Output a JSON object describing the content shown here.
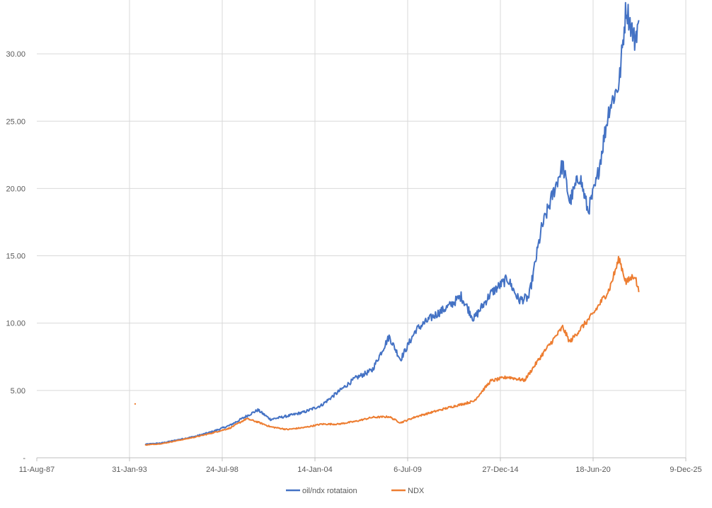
{
  "chart_data": {
    "type": "line",
    "title": "",
    "xlabel": "",
    "ylabel": "",
    "x_axis_type": "date",
    "xlim": [
      "1987-08-11",
      "2025-12-09"
    ],
    "ylim": [
      0,
      34
    ],
    "x_tick_labels": [
      "11-Aug-87",
      "31-Jan-93",
      "24-Jul-98",
      "14-Jan-04",
      "6-Jul-09",
      "27-Dec-14",
      "18-Jun-20",
      "9-Dec-25"
    ],
    "x_ticks": [
      "1987-08-11",
      "1993-01-31",
      "1998-07-24",
      "2004-01-14",
      "2009-07-06",
      "2014-12-27",
      "2020-06-18",
      "2025-12-09"
    ],
    "y_ticks": [
      0,
      5,
      10,
      15,
      20,
      25,
      30
    ],
    "y_tick_labels": [
      "-",
      "5.00",
      "10.00",
      "15.00",
      "20.00",
      "25.00",
      "30.00"
    ],
    "grid": true,
    "legend_position": "bottom",
    "series": [
      {
        "name": "oil/ndx rotataion",
        "color": "#4472C4",
        "points": [
          [
            "1994-01-01",
            1.0
          ],
          [
            "1995-01-01",
            1.1
          ],
          [
            "1996-01-01",
            1.35
          ],
          [
            "1997-01-01",
            1.6
          ],
          [
            "1998-01-01",
            1.95
          ],
          [
            "1999-01-01",
            2.4
          ],
          [
            "2000-01-01",
            3.1
          ],
          [
            "2000-09-01",
            3.55
          ],
          [
            "2001-06-01",
            2.85
          ],
          [
            "2002-06-01",
            3.1
          ],
          [
            "2003-06-01",
            3.4
          ],
          [
            "2004-06-01",
            3.9
          ],
          [
            "2005-06-01",
            4.9
          ],
          [
            "2006-06-01",
            5.9
          ],
          [
            "2007-06-01",
            6.5
          ],
          [
            "2008-06-01",
            9.0
          ],
          [
            "2009-02-01",
            7.3
          ],
          [
            "2010-01-01",
            9.5
          ],
          [
            "2011-01-01",
            10.5
          ],
          [
            "2012-01-01",
            11.3
          ],
          [
            "2012-09-01",
            12.0
          ],
          [
            "2013-06-01",
            10.3
          ],
          [
            "2014-06-01",
            12.2
          ],
          [
            "2015-06-01",
            13.3
          ],
          [
            "2016-02-01",
            11.7
          ],
          [
            "2016-09-01",
            11.9
          ],
          [
            "2017-06-01",
            17.0
          ],
          [
            "2018-09-01",
            21.8
          ],
          [
            "2019-02-01",
            19.0
          ],
          [
            "2019-09-01",
            21.0
          ],
          [
            "2020-03-01",
            18.3
          ],
          [
            "2020-09-01",
            20.5
          ],
          [
            "2021-06-01",
            26.0
          ],
          [
            "2022-01-01",
            27.8
          ],
          [
            "2022-06-01",
            33.5
          ],
          [
            "2022-12-01",
            31.0
          ],
          [
            "2023-03-01",
            32.5
          ]
        ]
      },
      {
        "name": "NDX",
        "color": "#ED7D31",
        "points": [
          [
            "1993-06-01",
            4.0
          ],
          [
            "1994-01-01",
            0.95
          ],
          [
            "1995-01-01",
            1.05
          ],
          [
            "1996-01-01",
            1.3
          ],
          [
            "1997-01-01",
            1.55
          ],
          [
            "1998-01-01",
            1.85
          ],
          [
            "1999-01-01",
            2.2
          ],
          [
            "2000-01-01",
            2.9
          ],
          [
            "2000-09-01",
            2.65
          ],
          [
            "2001-06-01",
            2.3
          ],
          [
            "2002-06-01",
            2.1
          ],
          [
            "2003-06-01",
            2.25
          ],
          [
            "2004-06-01",
            2.5
          ],
          [
            "2005-06-01",
            2.5
          ],
          [
            "2006-06-01",
            2.7
          ],
          [
            "2007-06-01",
            3.0
          ],
          [
            "2008-06-01",
            3.05
          ],
          [
            "2009-02-01",
            2.6
          ],
          [
            "2010-01-01",
            3.05
          ],
          [
            "2011-01-01",
            3.4
          ],
          [
            "2012-01-01",
            3.75
          ],
          [
            "2013-06-01",
            4.2
          ],
          [
            "2014-06-01",
            5.7
          ],
          [
            "2015-06-01",
            6.0
          ],
          [
            "2016-06-01",
            5.75
          ],
          [
            "2017-06-01",
            7.6
          ],
          [
            "2018-09-01",
            9.7
          ],
          [
            "2019-02-01",
            8.6
          ],
          [
            "2019-09-01",
            9.5
          ],
          [
            "2020-06-01",
            10.6
          ],
          [
            "2021-06-01",
            12.5
          ],
          [
            "2022-01-01",
            14.8
          ],
          [
            "2022-06-01",
            13.0
          ],
          [
            "2022-12-01",
            13.6
          ],
          [
            "2023-03-01",
            12.3
          ]
        ]
      }
    ]
  }
}
